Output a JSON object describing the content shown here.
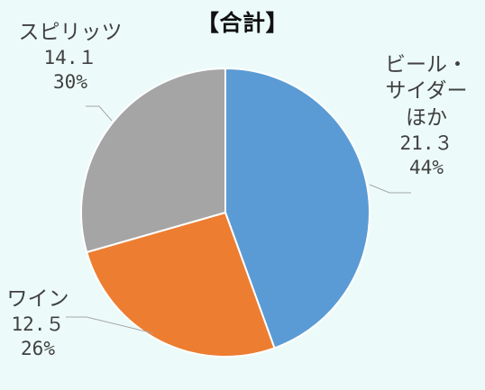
{
  "chart_data": {
    "type": "pie",
    "title": "【合計】",
    "start_angle_deg": 0,
    "direction": "clockwise",
    "slices": [
      {
        "label": [
          "ビール・",
          "サイダー",
          "ほか"
        ],
        "value": "21.３",
        "percent": "44%",
        "numeric": 21.3,
        "color": "#5b9bd5"
      },
      {
        "label": [
          "ワイン"
        ],
        "value": "12.５",
        "percent": "26%",
        "numeric": 12.5,
        "color": "#ed7d31"
      },
      {
        "label": [
          "スピリッツ"
        ],
        "value": "14.１",
        "percent": "30%",
        "numeric": 14.1,
        "color": "#a5a5a5"
      }
    ]
  }
}
